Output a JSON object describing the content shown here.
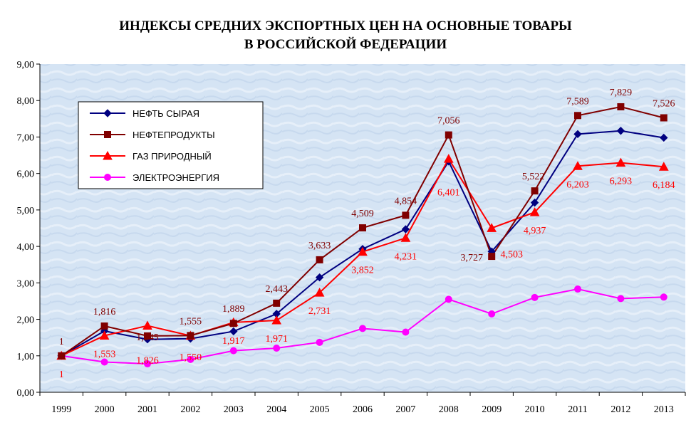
{
  "chart_data": {
    "type": "line",
    "title_lines": [
      "ИНДЕКСЫ СРЕДНИХ ЭКСПОРТНЫХ ЦЕН НА ОСНОВНЫЕ ТОВАРЫ",
      "В РОССИЙСКОЙ ФЕДЕРАЦИИ"
    ],
    "xlabel": "",
    "ylabel": "",
    "categories": [
      "1999",
      "2000",
      "2001",
      "2002",
      "2003",
      "2004",
      "2005",
      "2006",
      "2007",
      "2008",
      "2009",
      "2010",
      "2011",
      "2012",
      "2013"
    ],
    "ylim": [
      0,
      9
    ],
    "yticks": [
      "0,00",
      "1,00",
      "2,00",
      "3,00",
      "4,00",
      "5,00",
      "6,00",
      "7,00",
      "8,00",
      "9,00"
    ],
    "grid": false,
    "legend_position": "top-left",
    "series": [
      {
        "name": "НЕФТЬ СЫРАЯ",
        "color": "#000080",
        "marker": "diamond",
        "values": [
          1,
          1.68,
          1.45,
          1.47,
          1.67,
          2.15,
          3.15,
          3.93,
          4.47,
          6.33,
          3.86,
          5.2,
          7.08,
          7.17,
          6.98
        ],
        "labels": []
      },
      {
        "name": "НЕФТЕПРОДУКТЫ",
        "color": "#800000",
        "marker": "square",
        "values": [
          1,
          1.816,
          1.545,
          1.555,
          1.889,
          2.443,
          3.633,
          4.509,
          4.854,
          7.056,
          3.727,
          5.522,
          7.589,
          7.829,
          7.526
        ],
        "labels": [
          "1",
          "1,816",
          "1,545",
          "1,555",
          "1,889",
          "2,443",
          "3,633",
          "4,509",
          "4,854",
          "7,056",
          "3,727",
          "5,522",
          "7,589",
          "7,829",
          "7,526"
        ]
      },
      {
        "name": "ГАЗ ПРИРОДНЫЙ",
        "color": "#ff0000",
        "marker": "triangle",
        "values": [
          1,
          1.553,
          1.826,
          1.55,
          1.917,
          1.971,
          2.731,
          3.852,
          4.231,
          6.401,
          4.503,
          4.937,
          6.203,
          6.293,
          6.184
        ],
        "labels": [
          "1",
          "1,553",
          "1,826",
          "1,550",
          "1,917",
          "1,971",
          "2,731",
          "3,852",
          "4,231",
          "6,401",
          "4,503",
          "4,937",
          "6,203",
          "6,293",
          "6,184"
        ]
      },
      {
        "name": "ЭЛЕКТРОЭНЕРГИЯ",
        "color": "#ff00ff",
        "marker": "circle",
        "values": [
          1,
          0.83,
          0.78,
          0.9,
          1.14,
          1.21,
          1.37,
          1.75,
          1.65,
          2.55,
          2.15,
          2.6,
          2.83,
          2.57,
          2.61
        ],
        "labels": []
      }
    ]
  }
}
